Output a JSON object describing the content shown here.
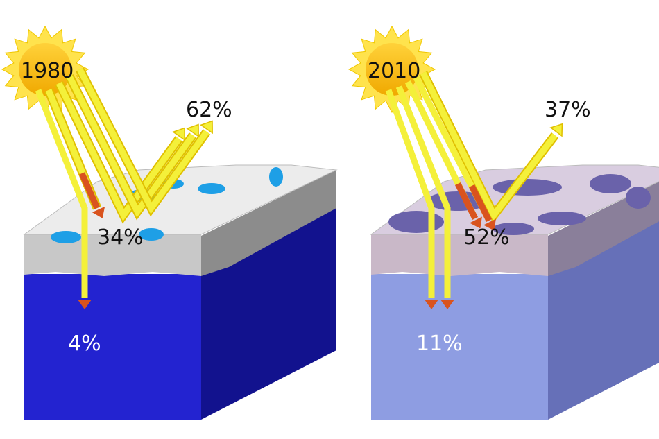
{
  "panels": [
    {
      "year": "1980",
      "reflected": "62%",
      "absorbed_ice": "34%",
      "absorbed_ocean": "4%",
      "colors": {
        "ice_top": "#ececec",
        "ice_side": "#c8c8c8",
        "ice_right": "#8c8c8c",
        "pond": "#1e9fe6",
        "water_front": "#2323d0",
        "water_side": "#12128e"
      }
    },
    {
      "year": "2010",
      "reflected": "37%",
      "absorbed_ice": "52%",
      "absorbed_ocean": "11%",
      "colors": {
        "ice_top": "#d9cde0",
        "ice_side": "#c9b8c8",
        "ice_right": "#8a7f9a",
        "pond": "#6a62aa",
        "water_front": "#8e9de2",
        "water_side": "#6670b8"
      }
    }
  ],
  "colors": {
    "ray": "#f4f03a",
    "ray_edge": "#e0c000",
    "absorbed_arrow": "#d9531e",
    "sun": "#ffe34d",
    "sun_core": "#f2b800"
  }
}
